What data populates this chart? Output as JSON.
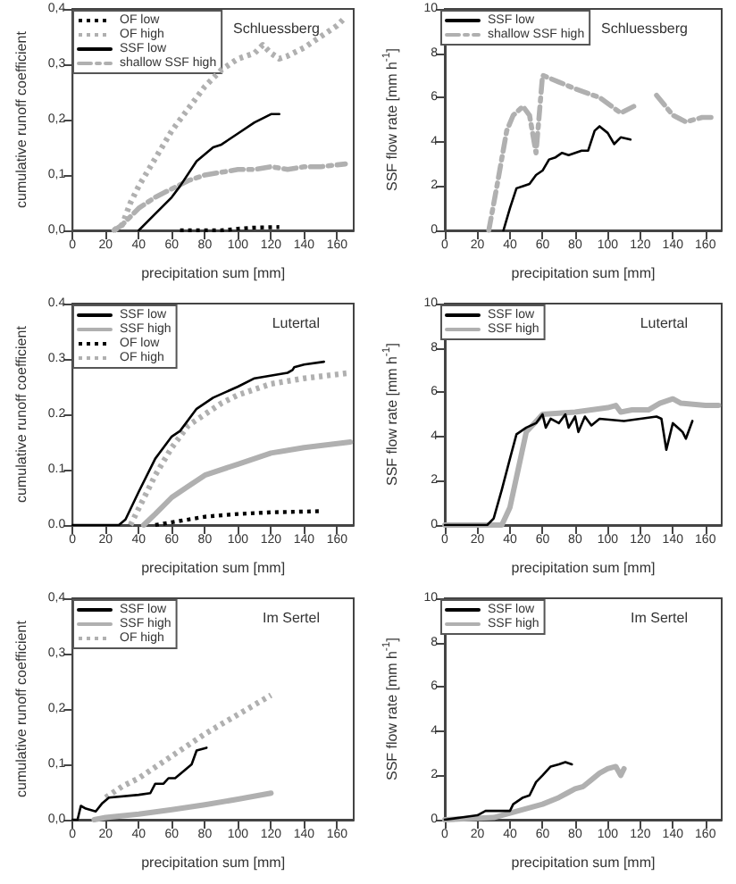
{
  "chart_data": [
    {
      "type": "line",
      "title": "Schluessberg",
      "xlabel": "precipitation sum [mm]",
      "ylabel": "cumulative runoff coefficient",
      "xlim": [
        0,
        170
      ],
      "xticks": [
        0,
        20,
        40,
        60,
        80,
        100,
        120,
        140,
        160
      ],
      "ylim": [
        0,
        0.4
      ],
      "yticks": [
        {
          "value": 0,
          "label": "0,0"
        },
        {
          "value": 0.1,
          "label": "0,1"
        },
        {
          "value": 0.2,
          "label": "0,2"
        },
        {
          "value": 0.3,
          "label": "0,3"
        },
        {
          "value": 0.4,
          "label": "0,4"
        }
      ],
      "grid": false,
      "legend": "top left",
      "marker": "none",
      "series": [
        {
          "name": "OF low",
          "color": "#000000",
          "line_style": "dotted",
          "x": [
            65,
            90,
            100,
            110,
            125
          ],
          "values": [
            0,
            0,
            0.003,
            0.005,
            0.006
          ]
        },
        {
          "name": "OF high",
          "color": "#b0b0b0",
          "line_style": "dotted",
          "x": [
            25,
            30,
            35,
            40,
            50,
            60,
            70,
            80,
            90,
            100,
            110,
            115,
            120,
            125,
            130,
            140,
            150,
            160,
            165
          ],
          "values": [
            0,
            0.01,
            0.05,
            0.08,
            0.13,
            0.18,
            0.22,
            0.26,
            0.29,
            0.31,
            0.32,
            0.335,
            0.32,
            0.31,
            0.315,
            0.33,
            0.35,
            0.37,
            0.385
          ]
        },
        {
          "name": "SSF low",
          "color": "#000000",
          "line_style": "solid",
          "x": [
            40,
            50,
            60,
            65,
            75,
            85,
            90,
            100,
            110,
            120,
            125
          ],
          "values": [
            0,
            0.03,
            0.06,
            0.08,
            0.125,
            0.15,
            0.155,
            0.175,
            0.195,
            0.21,
            0.21
          ]
        },
        {
          "name": "shallow SSF high",
          "color": "#b0b0b0",
          "line_style": "dashed",
          "x": [
            25,
            30,
            40,
            50,
            60,
            70,
            80,
            90,
            100,
            110,
            120,
            130,
            140,
            150,
            165
          ],
          "values": [
            0,
            0.01,
            0.04,
            0.06,
            0.075,
            0.09,
            0.1,
            0.105,
            0.11,
            0.11,
            0.115,
            0.11,
            0.115,
            0.115,
            0.12
          ]
        }
      ]
    },
    {
      "type": "line",
      "title": "Schluessberg",
      "xlabel": "precipitation sum [mm]",
      "ylabel": "SSF flow rate [mm h$^{-1}$]",
      "xlim": [
        0,
        170
      ],
      "xticks": [
        0,
        20,
        40,
        60,
        80,
        100,
        120,
        140,
        160
      ],
      "ylim": [
        0,
        10
      ],
      "yticks": [
        0,
        2,
        4,
        6,
        8,
        10
      ],
      "grid": false,
      "legend": "top left",
      "marker": "none",
      "series": [
        {
          "name": "SSF low",
          "color": "#000000",
          "line_style": "solid",
          "x": [
            36,
            40,
            44,
            48,
            52,
            56,
            60,
            64,
            68,
            72,
            76,
            80,
            84,
            88,
            92,
            95,
            100,
            104,
            108,
            114
          ],
          "values": [
            0,
            1,
            1.9,
            2,
            2.1,
            2.5,
            2.7,
            3.2,
            3.3,
            3.5,
            3.4,
            3.5,
            3.6,
            3.6,
            4.5,
            4.7,
            4.4,
            3.9,
            4.2,
            4.1
          ]
        },
        {
          "name": "shallow SSF high",
          "color": "#b0b0b0",
          "line_style": "dashed",
          "x": [
            27,
            32,
            38,
            42,
            48,
            52,
            56,
            60,
            70,
            80,
            95,
            108,
            116,
            123,
            130,
            140,
            148,
            158,
            165
          ],
          "values": [
            0,
            2,
            4.5,
            5.2,
            5.6,
            5.2,
            3.5,
            7,
            6.7,
            6.4,
            6,
            5.3,
            5.6,
            null,
            6.1,
            5.2,
            4.9,
            5.1,
            5.1
          ]
        }
      ]
    },
    {
      "type": "line",
      "title": "Lutertal",
      "xlabel": "precipitation sum [mm]",
      "ylabel": "cumulative runoff coefficient",
      "xlim": [
        0,
        170
      ],
      "xticks": [
        0,
        20,
        40,
        60,
        80,
        100,
        120,
        140,
        160
      ],
      "ylim": [
        0,
        0.4
      ],
      "yticks": [
        {
          "value": 0,
          "label": "0.0"
        },
        {
          "value": 0.1,
          "label": "0.1"
        },
        {
          "value": 0.2,
          "label": "0.2"
        },
        {
          "value": 0.3,
          "label": "0.3"
        },
        {
          "value": 0.4,
          "label": "0.4"
        }
      ],
      "grid": false,
      "legend": "top left",
      "marker": "none",
      "series": [
        {
          "name": "SSF low",
          "color": "#000000",
          "line_style": "solid",
          "x": [
            0,
            28,
            32,
            40,
            50,
            60,
            65,
            75,
            85,
            100,
            110,
            130,
            133,
            134,
            140,
            152
          ],
          "values": [
            0,
            0,
            0.01,
            0.06,
            0.12,
            0.16,
            0.17,
            0.21,
            0.23,
            0.25,
            0.265,
            0.275,
            0.28,
            0.285,
            0.29,
            0.295
          ]
        },
        {
          "name": "SSF high",
          "color": "#b0b0b0",
          "line_style": "solid",
          "x": [
            43,
            50,
            60,
            70,
            80,
            100,
            120,
            140,
            168
          ],
          "values": [
            0,
            0.02,
            0.05,
            0.07,
            0.09,
            0.11,
            0.13,
            0.14,
            0.15
          ]
        },
        {
          "name": "OF low",
          "color": "#000000",
          "line_style": "dotted",
          "x": [
            50,
            60,
            70,
            80,
            100,
            120,
            150
          ],
          "values": [
            0,
            0.005,
            0.01,
            0.015,
            0.02,
            0.023,
            0.025
          ]
        },
        {
          "name": "OF high",
          "color": "#b0b0b0",
          "line_style": "dotted",
          "x": [
            35,
            40,
            50,
            60,
            70,
            80,
            90,
            100,
            120,
            140,
            168
          ],
          "values": [
            0,
            0.03,
            0.09,
            0.14,
            0.18,
            0.2,
            0.22,
            0.235,
            0.255,
            0.265,
            0.275
          ]
        }
      ]
    },
    {
      "type": "line",
      "title": "Lutertal",
      "xlabel": "precipitation sum [mm]",
      "ylabel": "SSF flow rate [mm h$^{-1}$]",
      "xlim": [
        0,
        170
      ],
      "xticks": [
        0,
        20,
        40,
        60,
        80,
        100,
        120,
        140,
        160
      ],
      "ylim": [
        0,
        10
      ],
      "yticks": [
        0,
        2,
        4,
        6,
        8,
        10
      ],
      "grid": false,
      "legend": "top left",
      "marker": "none",
      "series": [
        {
          "name": "SSF low",
          "color": "#000000",
          "line_style": "solid",
          "x": [
            0,
            26,
            30,
            35,
            40,
            44,
            50,
            56,
            60,
            62,
            65,
            70,
            74,
            76,
            80,
            82,
            86,
            90,
            95,
            110,
            130,
            133,
            136,
            140,
            146,
            148,
            152
          ],
          "values": [
            0,
            0,
            0.3,
            1.6,
            3,
            4.1,
            4.4,
            4.6,
            5,
            4.4,
            4.8,
            4.6,
            5,
            4.4,
            4.9,
            4.2,
            4.9,
            4.5,
            4.8,
            4.7,
            4.9,
            4.8,
            3.4,
            4.6,
            4.2,
            3.9,
            4.7
          ]
        },
        {
          "name": "SSF high",
          "color": "#b0b0b0",
          "line_style": "solid",
          "x": [
            0,
            35,
            40,
            45,
            50,
            55,
            60,
            80,
            100,
            105,
            108,
            115,
            125,
            132,
            140,
            145,
            160,
            168
          ],
          "values": [
            0,
            0,
            0.8,
            2.5,
            4.2,
            4.6,
            5,
            5.1,
            5.3,
            5.4,
            5.1,
            5.2,
            5.2,
            5.5,
            5.7,
            5.5,
            5.4,
            5.4
          ]
        }
      ]
    },
    {
      "type": "line",
      "title": "Im Sertel",
      "xlabel": "precipitation sum [mm]",
      "ylabel": "cumulative runoff coefficient",
      "xlim": [
        0,
        170
      ],
      "xticks": [
        0,
        20,
        40,
        60,
        80,
        100,
        120,
        140,
        160
      ],
      "ylim": [
        0,
        0.4
      ],
      "yticks": [
        {
          "value": 0,
          "label": "0,0"
        },
        {
          "value": 0.1,
          "label": "0,1"
        },
        {
          "value": 0.2,
          "label": "0,2"
        },
        {
          "value": 0.3,
          "label": "0,3"
        },
        {
          "value": 0.4,
          "label": "0,4"
        }
      ],
      "grid": false,
      "legend": "top left",
      "marker": "none",
      "series": [
        {
          "name": "SSF low",
          "color": "#000000",
          "line_style": "solid",
          "x": [
            0,
            3,
            5,
            8,
            14,
            18,
            22,
            40,
            47,
            50,
            55,
            58,
            62,
            68,
            72,
            75,
            81
          ],
          "values": [
            0,
            0,
            0.025,
            0.02,
            0.015,
            0.03,
            0.04,
            0.045,
            0.048,
            0.065,
            0.065,
            0.075,
            0.075,
            0.09,
            0.1,
            0.125,
            0.13
          ]
        },
        {
          "name": "SSF high",
          "color": "#b0b0b0",
          "line_style": "solid",
          "x": [
            13,
            20,
            40,
            60,
            80,
            100,
            120
          ],
          "values": [
            0,
            0.004,
            0.01,
            0.018,
            0.027,
            0.037,
            0.048
          ]
        },
        {
          "name": "OF high",
          "color": "#b0b0b0",
          "line_style": "dotted",
          "x": [
            20,
            30,
            40,
            60,
            80,
            100,
            120
          ],
          "values": [
            0.04,
            0.06,
            0.075,
            0.115,
            0.155,
            0.19,
            0.225
          ]
        }
      ]
    },
    {
      "type": "line",
      "title": "Im Sertel",
      "xlabel": "precipitation sum [mm]",
      "ylabel": "SSF flow rate [mm h$^{-1}$]",
      "xlim": [
        0,
        170
      ],
      "xticks": [
        0,
        20,
        40,
        60,
        80,
        100,
        120,
        140,
        160
      ],
      "ylim": [
        0,
        10
      ],
      "yticks": [
        0,
        2,
        4,
        6,
        8,
        10
      ],
      "grid": false,
      "legend": "top left",
      "marker": "none",
      "series": [
        {
          "name": "SSF low",
          "color": "#000000",
          "line_style": "solid",
          "x": [
            0,
            10,
            20,
            25,
            40,
            42,
            48,
            52,
            56,
            60,
            65,
            70,
            74,
            78
          ],
          "values": [
            0,
            0.1,
            0.2,
            0.4,
            0.4,
            0.7,
            1,
            1.1,
            1.7,
            2,
            2.4,
            2.5,
            2.6,
            2.5
          ]
        },
        {
          "name": "SSF high",
          "color": "#b0b0b0",
          "line_style": "solid",
          "x": [
            0,
            30,
            40,
            50,
            60,
            70,
            75,
            80,
            85,
            90,
            95,
            100,
            105,
            108,
            110
          ],
          "values": [
            0,
            0.1,
            0.3,
            0.5,
            0.7,
            1,
            1.2,
            1.4,
            1.5,
            1.8,
            2.1,
            2.3,
            2.4,
            2,
            2.3
          ]
        }
      ]
    }
  ]
}
